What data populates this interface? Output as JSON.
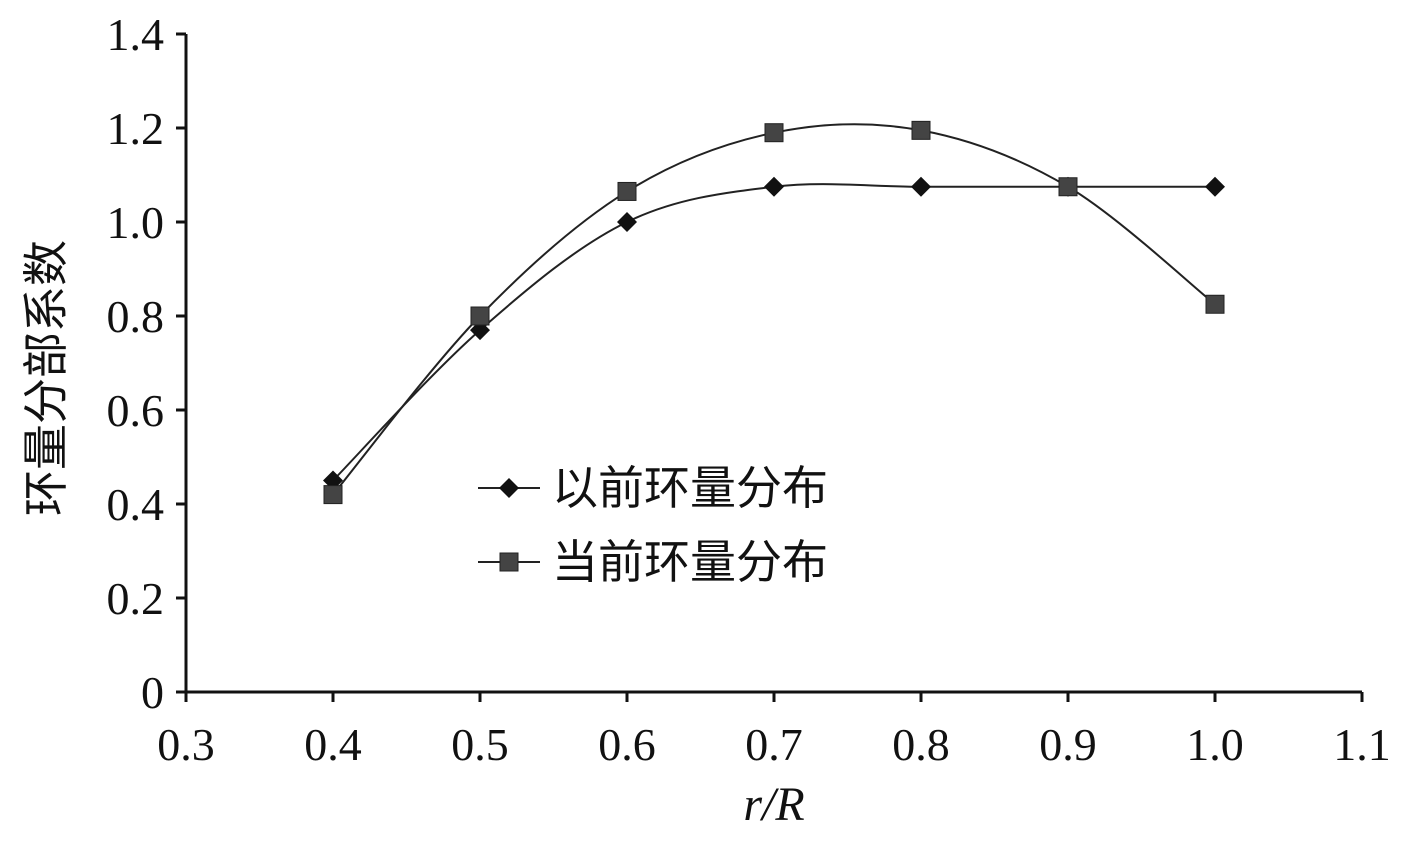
{
  "chart_data": {
    "type": "line",
    "title": "",
    "xlabel": "r/R",
    "ylabel": "环量分部系数",
    "xlim": [
      0.3,
      1.1
    ],
    "ylim": [
      0,
      1.4
    ],
    "x_ticks": [
      "0.3",
      "0.4",
      "0.5",
      "0.6",
      "0.7",
      "0.8",
      "0.9",
      "1.0",
      "1.1"
    ],
    "y_ticks": [
      "0",
      "0.2",
      "0.4",
      "0.6",
      "0.8",
      "1.0",
      "1.2",
      "1.4"
    ],
    "grid": false,
    "legend_position": "center-left",
    "x": [
      0.4,
      0.5,
      0.6,
      0.7,
      0.8,
      0.9,
      1.0
    ],
    "series": [
      {
        "name": "以前环量分布",
        "marker": "diamond",
        "color": "#111111",
        "values": [
          0.45,
          0.77,
          1.0,
          1.075,
          1.075,
          1.075,
          1.075
        ]
      },
      {
        "name": "当前环量分布",
        "marker": "square",
        "color": "#444444",
        "values": [
          0.42,
          0.8,
          1.065,
          1.19,
          1.195,
          1.075,
          0.825
        ]
      }
    ]
  }
}
